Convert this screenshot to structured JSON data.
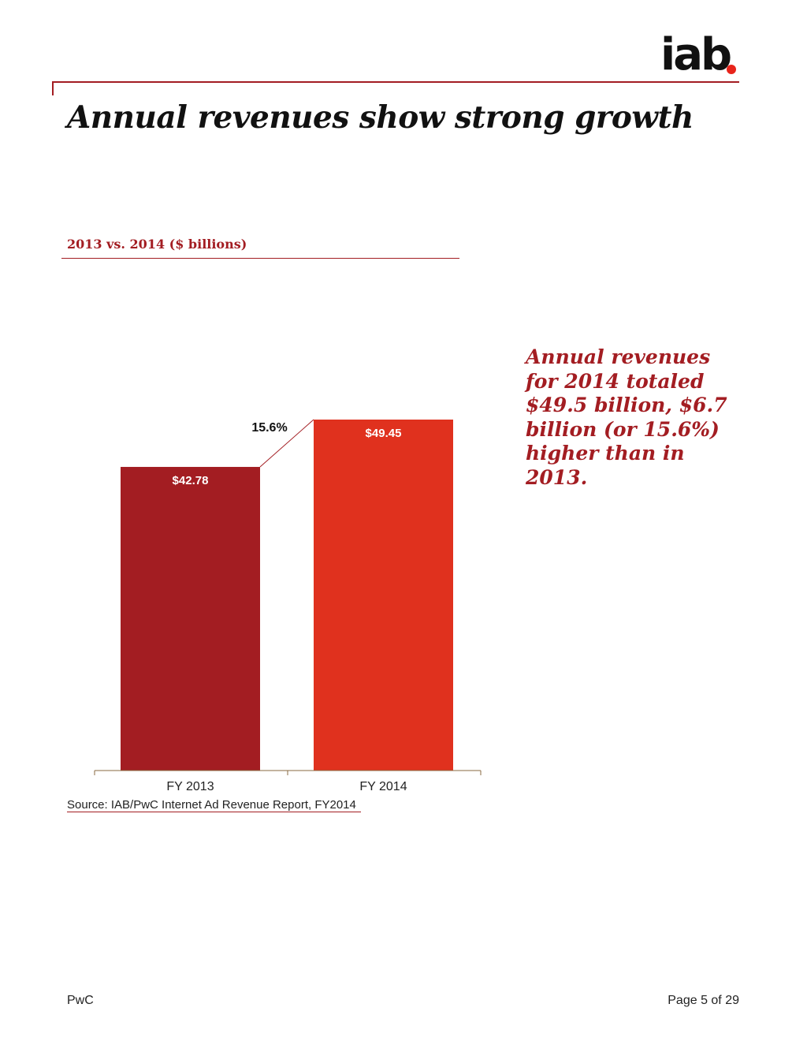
{
  "logo": {
    "text": "iab",
    "dot_color": "#e8241b"
  },
  "page_title": "Annual revenues show strong growth",
  "chart_subtitle": "2013 vs. 2014 ($ billions)",
  "callout": "Annual revenues for 2014 totaled $49.5 billion, $6.7 billion (or 15.6%) higher than in 2013.",
  "source": "Source: IAB/PwC Internet Ad Revenue Report, FY2014",
  "footer": {
    "left": "PwC",
    "right": "Page 5 of 29"
  },
  "colors": {
    "accent": "#a31d22",
    "bar_2013": "#a31d22",
    "bar_2014": "#e0311e"
  },
  "chart_data": {
    "type": "bar",
    "title": "2013 vs. 2014 ($ billions)",
    "xlabel": "",
    "ylabel": "",
    "categories": [
      "FY 2013",
      "FY 2014"
    ],
    "values": [
      42.78,
      49.45
    ],
    "value_labels": [
      "$42.78",
      "$49.45"
    ],
    "colors": [
      "#a31d22",
      "#e0311e"
    ],
    "growth_label": "15.6%",
    "ylim": [
      0,
      49.45
    ],
    "grid": false,
    "legend": "none"
  }
}
